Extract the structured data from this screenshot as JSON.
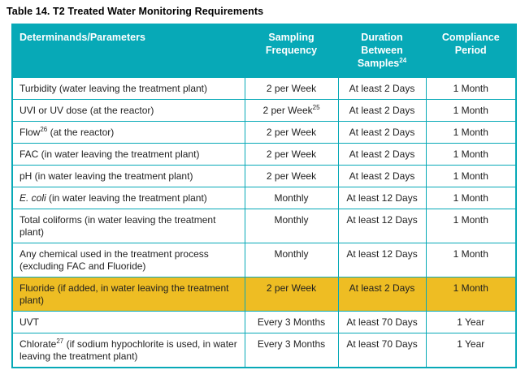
{
  "title": "Table 14. T2 Treated Water Monitoring Requirements",
  "colors": {
    "header_bg": "#07A9B7",
    "highlight_bg": "#EEBD23",
    "border": "#07A9B7",
    "header_text": "#FFFFFF",
    "body_text": "#1F1F1F"
  },
  "table": {
    "columns": [
      {
        "label": [
          {
            "t": "Determinands/Parameters"
          }
        ]
      },
      {
        "label": [
          {
            "t": "Sampling Frequency"
          }
        ]
      },
      {
        "label": [
          {
            "t": "Duration Between Samples"
          },
          {
            "t": "24",
            "sup": true
          }
        ]
      },
      {
        "label": [
          {
            "t": "Compliance Period"
          }
        ]
      }
    ],
    "rows": [
      {
        "parameter": [
          {
            "t": "Turbidity (water leaving the treatment plant)"
          }
        ],
        "frequency": [
          {
            "t": "2 per Week"
          }
        ],
        "duration": "At least 2 Days",
        "compliance": "1 Month",
        "highlight": false
      },
      {
        "parameter": [
          {
            "t": "UVI or UV dose (at the reactor)"
          }
        ],
        "frequency": [
          {
            "t": "2 per Week"
          },
          {
            "t": "25",
            "sup": true
          }
        ],
        "duration": "At least 2 Days",
        "compliance": "1 Month",
        "highlight": false
      },
      {
        "parameter": [
          {
            "t": "Flow"
          },
          {
            "t": "26",
            "sup": true
          },
          {
            "t": " (at the reactor)"
          }
        ],
        "frequency": [
          {
            "t": "2 per Week"
          }
        ],
        "duration": "At least 2 Days",
        "compliance": "1 Month",
        "highlight": false
      },
      {
        "parameter": [
          {
            "t": "FAC (in water leaving the treatment plant)"
          }
        ],
        "frequency": [
          {
            "t": "2 per Week"
          }
        ],
        "duration": "At least 2 Days",
        "compliance": "1 Month",
        "highlight": false
      },
      {
        "parameter": [
          {
            "t": "pH (in water leaving the treatment plant)"
          }
        ],
        "frequency": [
          {
            "t": "2 per Week"
          }
        ],
        "duration": "At least 2 Days",
        "compliance": "1 Month",
        "highlight": false
      },
      {
        "parameter": [
          {
            "t": "E. coli",
            "i": true
          },
          {
            "t": " (in water leaving the treatment plant)"
          }
        ],
        "frequency": [
          {
            "t": "Monthly"
          }
        ],
        "duration": "At least 12 Days",
        "compliance": "1 Month",
        "highlight": false
      },
      {
        "parameter": [
          {
            "t": "Total coliforms (in water leaving the treatment plant)"
          }
        ],
        "frequency": [
          {
            "t": "Monthly"
          }
        ],
        "duration": "At least 12 Days",
        "compliance": "1 Month",
        "highlight": false
      },
      {
        "parameter": [
          {
            "t": "Any chemical used in the treatment process (excluding FAC and Fluoride)"
          }
        ],
        "frequency": [
          {
            "t": "Monthly"
          }
        ],
        "duration": "At least 12 Days",
        "compliance": "1 Month",
        "highlight": false
      },
      {
        "parameter": [
          {
            "t": "Fluoride (if added, in water leaving the treatment plant)"
          }
        ],
        "frequency": [
          {
            "t": "2 per Week"
          }
        ],
        "duration": "At least 2 Days",
        "compliance": "1 Month",
        "highlight": true
      },
      {
        "parameter": [
          {
            "t": "UVT"
          }
        ],
        "frequency": [
          {
            "t": "Every 3 Months"
          }
        ],
        "duration": "At least 70 Days",
        "compliance": "1 Year",
        "highlight": false
      },
      {
        "parameter": [
          {
            "t": "Chlorate"
          },
          {
            "t": "27",
            "sup": true
          },
          {
            "t": " (if sodium hypochlorite is used, in water leaving the treatment plant)"
          }
        ],
        "frequency": [
          {
            "t": "Every 3 Months"
          }
        ],
        "duration": "At least 70 Days",
        "compliance": "1 Year",
        "highlight": false
      }
    ]
  }
}
